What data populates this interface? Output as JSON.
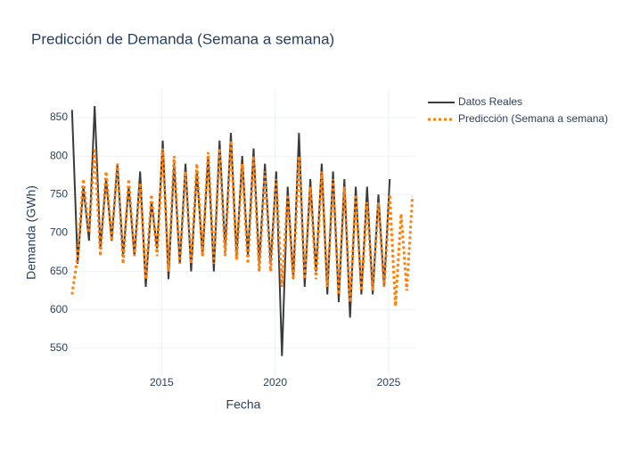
{
  "chart_data": {
    "type": "line",
    "title": "Predicción de Demanda (Semana a semana)",
    "x_label": "Fecha",
    "y_label": "Demanda (GWh)",
    "x": [
      2011.05,
      2011.3,
      2011.55,
      2011.8,
      2012.05,
      2012.3,
      2012.55,
      2012.8,
      2013.05,
      2013.3,
      2013.55,
      2013.8,
      2014.05,
      2014.3,
      2014.55,
      2014.8,
      2015.05,
      2015.3,
      2015.55,
      2015.8,
      2016.05,
      2016.3,
      2016.55,
      2016.8,
      2017.05,
      2017.3,
      2017.55,
      2017.8,
      2018.05,
      2018.3,
      2018.55,
      2018.8,
      2019.05,
      2019.3,
      2019.55,
      2019.8,
      2020.05,
      2020.3,
      2020.55,
      2020.8,
      2021.05,
      2021.3,
      2021.55,
      2021.8,
      2022.05,
      2022.3,
      2022.55,
      2022.8,
      2023.05,
      2023.3,
      2023.55,
      2023.8,
      2024.05,
      2024.3,
      2024.55,
      2024.8,
      2025.05,
      2025.3,
      2025.55,
      2025.8,
      2026.05
    ],
    "series": [
      {
        "name": "Datos Reales",
        "color": "#3b3b3b",
        "dash": "solid",
        "values": [
          860,
          660,
          760,
          690,
          865,
          680,
          770,
          690,
          790,
          670,
          760,
          670,
          780,
          630,
          740,
          680,
          820,
          640,
          790,
          660,
          790,
          650,
          780,
          670,
          800,
          650,
          820,
          680,
          830,
          670,
          800,
          670,
          810,
          660,
          790,
          660,
          780,
          540,
          760,
          640,
          830,
          630,
          770,
          650,
          790,
          620,
          780,
          610,
          770,
          590,
          760,
          620,
          760,
          620,
          750,
          630,
          770,
          null,
          null,
          null,
          null
        ]
      },
      {
        "name": "Predicción (Semana a semana)",
        "color": "#ff7f0e",
        "dash": "dot",
        "values": [
          620,
          670,
          770,
          700,
          810,
          670,
          780,
          690,
          790,
          660,
          770,
          670,
          765,
          640,
          750,
          670,
          810,
          650,
          800,
          660,
          780,
          660,
          790,
          670,
          805,
          660,
          810,
          670,
          820,
          665,
          790,
          660,
          800,
          650,
          780,
          650,
          770,
          630,
          750,
          640,
          800,
          640,
          760,
          640,
          780,
          630,
          770,
          620,
          760,
          610,
          750,
          625,
          740,
          625,
          740,
          630,
          750,
          605,
          725,
          625,
          748
        ]
      }
    ],
    "xlim": [
      2011.02,
      2026.14
    ],
    "ylim": [
      514,
      887
    ],
    "xticks": [
      2015,
      2020,
      2025
    ],
    "yticks": [
      550,
      600,
      650,
      700,
      750,
      800,
      850
    ],
    "grid": true,
    "legend": "right"
  }
}
